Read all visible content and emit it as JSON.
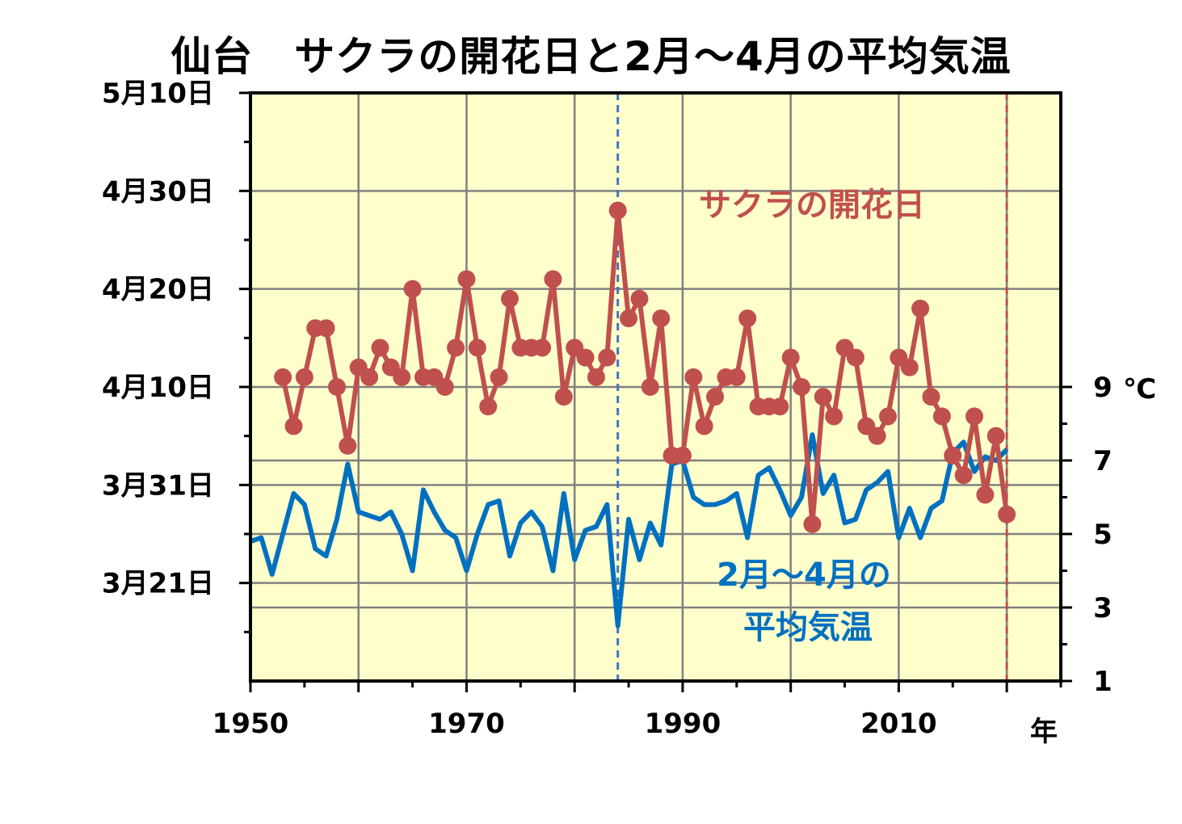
{
  "title": "仙台　サクラの開花日と2月～4月の平均気温",
  "chart_data": {
    "type": "line",
    "title": "仙台　サクラの開花日と2月～4月の平均気温",
    "xlabel": "年",
    "xlim": [
      1950,
      2025
    ],
    "x_ticks": [
      "1950",
      "1970",
      "1990",
      "2010"
    ],
    "x_tick_values": [
      1950,
      1970,
      1990,
      2010
    ],
    "left_axis": {
      "unit": "day of year",
      "ylim": [
        70,
        130
      ],
      "tick_values": [
        80,
        90,
        100,
        110,
        120,
        130
      ],
      "tick_labels": [
        "3月21日",
        "3月31日",
        "4月10日",
        "4月20日",
        "4月30日",
        "5月10日"
      ]
    },
    "right_axis": {
      "unit": "℃",
      "ylim": [
        1,
        17
      ],
      "tick_values": [
        1,
        3,
        5,
        7,
        9
      ],
      "tick_labels": [
        "1",
        "3",
        "5",
        "7",
        "9"
      ],
      "unit_label": "℃"
    },
    "vlines": [
      {
        "x": 1984,
        "color": "#4472C4"
      },
      {
        "x": 2020,
        "color": "#C0504D"
      }
    ],
    "grid": true,
    "colors": {
      "background": "#FFFFCC",
      "grid": "#808080",
      "sakura": "#C0504D",
      "temp": "#0070C0"
    },
    "series": [
      {
        "name": "サクラの開花日",
        "axis": "left",
        "color": "#C0504D",
        "x": [
          1953,
          1954,
          1955,
          1956,
          1957,
          1958,
          1959,
          1960,
          1961,
          1962,
          1963,
          1964,
          1965,
          1966,
          1967,
          1968,
          1969,
          1970,
          1971,
          1972,
          1973,
          1974,
          1975,
          1976,
          1977,
          1978,
          1979,
          1980,
          1981,
          1982,
          1983,
          1984,
          1985,
          1986,
          1987,
          1988,
          1989,
          1990,
          1991,
          1992,
          1993,
          1994,
          1995,
          1996,
          1997,
          1998,
          1999,
          2000,
          2001,
          2002,
          2003,
          2004,
          2005,
          2006,
          2007,
          2008,
          2009,
          2010,
          2011,
          2012,
          2013,
          2014,
          2015,
          2016,
          2017,
          2018,
          2019,
          2020
        ],
        "values": [
          101,
          96,
          101,
          106,
          106,
          100,
          94,
          102,
          101,
          104,
          102,
          101,
          110,
          101,
          101,
          100,
          104,
          111,
          104,
          98,
          101,
          109,
          104,
          104,
          104,
          111,
          99,
          104,
          103,
          101,
          103,
          118,
          107,
          109,
          100,
          107,
          93,
          93,
          101,
          96,
          99,
          101,
          101,
          107,
          98,
          98,
          98,
          103,
          100,
          86,
          99,
          97,
          104,
          103,
          96,
          95,
          97,
          103,
          102,
          108,
          99,
          97,
          93,
          91,
          97,
          89,
          95,
          87
        ]
      },
      {
        "name": "2月～4月の平均気温",
        "axis": "right",
        "color": "#0070C0",
        "x": [
          1950,
          1951,
          1952,
          1953,
          1954,
          1955,
          1956,
          1957,
          1958,
          1959,
          1960,
          1961,
          1962,
          1963,
          1964,
          1965,
          1966,
          1967,
          1968,
          1969,
          1970,
          1971,
          1972,
          1973,
          1974,
          1975,
          1976,
          1977,
          1978,
          1979,
          1980,
          1981,
          1982,
          1983,
          1984,
          1985,
          1986,
          1987,
          1988,
          1989,
          1990,
          1991,
          1992,
          1993,
          1994,
          1995,
          1996,
          1997,
          1998,
          1999,
          2000,
          2001,
          2002,
          2003,
          2004,
          2005,
          2006,
          2007,
          2008,
          2009,
          2010,
          2011,
          2012,
          2013,
          2014,
          2015,
          2016,
          2017,
          2018,
          2019,
          2020
        ],
        "values": [
          4.8,
          4.9,
          3.9,
          5.0,
          6.1,
          5.8,
          4.6,
          4.4,
          5.4,
          6.9,
          5.6,
          5.5,
          5.4,
          5.6,
          5.0,
          4.0,
          6.2,
          5.6,
          5.1,
          4.9,
          4.0,
          5.0,
          5.8,
          5.9,
          4.4,
          5.3,
          5.6,
          5.2,
          4.0,
          6.1,
          4.3,
          5.1,
          5.2,
          5.8,
          2.5,
          5.4,
          4.3,
          5.3,
          4.7,
          6.9,
          7.0,
          6.0,
          5.8,
          5.8,
          5.9,
          6.1,
          4.9,
          6.6,
          6.8,
          6.2,
          5.5,
          6.0,
          7.7,
          6.1,
          6.6,
          5.3,
          5.4,
          6.2,
          6.4,
          6.7,
          4.9,
          5.7,
          4.9,
          5.7,
          5.9,
          7.2,
          7.5,
          6.7,
          7.1,
          7.0,
          7.3
        ]
      }
    ],
    "annotations": [
      {
        "text": "サクラの開花日",
        "color": "#C0504D"
      },
      {
        "text": "2月～4月の",
        "color": "#0070C0"
      },
      {
        "text": "平均気温",
        "color": "#0070C0"
      }
    ]
  }
}
